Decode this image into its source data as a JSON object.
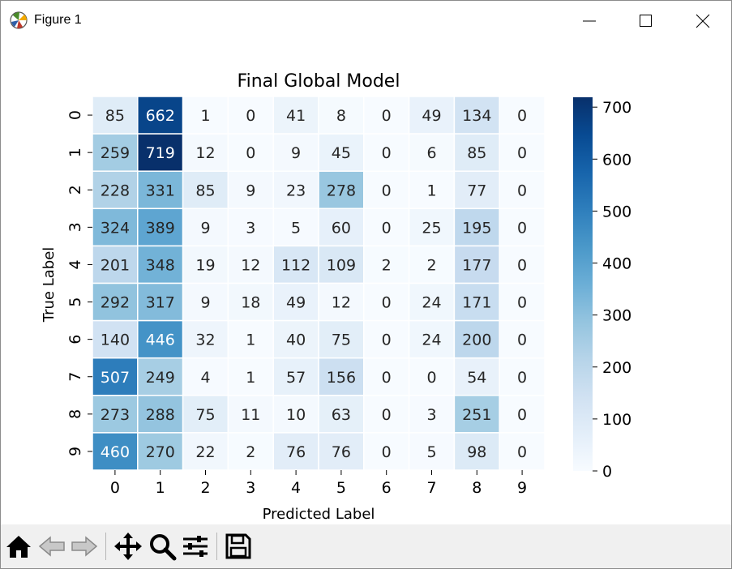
{
  "window": {
    "title": "Figure 1",
    "controls": [
      "minimize",
      "maximize",
      "close"
    ]
  },
  "toolbar": {
    "tools": [
      "home-icon",
      "back-icon",
      "forward-icon",
      "pan-icon",
      "zoom-icon",
      "configure-subplots-icon",
      "save-icon"
    ]
  },
  "chart_data": {
    "type": "heatmap",
    "title": "Final Global Model",
    "xlabel": "Predicted Label",
    "ylabel": "True Label",
    "x_categories": [
      "0",
      "1",
      "2",
      "3",
      "4",
      "5",
      "6",
      "7",
      "8",
      "9"
    ],
    "y_categories": [
      "0",
      "1",
      "2",
      "3",
      "4",
      "5",
      "6",
      "7",
      "8",
      "9"
    ],
    "values": [
      [
        85,
        662,
        1,
        0,
        41,
        8,
        0,
        49,
        134,
        0
      ],
      [
        259,
        719,
        12,
        0,
        9,
        45,
        0,
        6,
        85,
        0
      ],
      [
        228,
        331,
        85,
        9,
        23,
        278,
        0,
        1,
        77,
        0
      ],
      [
        324,
        389,
        9,
        3,
        5,
        60,
        0,
        25,
        195,
        0
      ],
      [
        201,
        348,
        19,
        12,
        112,
        109,
        2,
        2,
        177,
        0
      ],
      [
        292,
        317,
        9,
        18,
        49,
        12,
        0,
        24,
        171,
        0
      ],
      [
        140,
        446,
        32,
        1,
        40,
        75,
        0,
        24,
        200,
        0
      ],
      [
        507,
        249,
        4,
        1,
        57,
        156,
        0,
        0,
        54,
        0
      ],
      [
        273,
        288,
        75,
        11,
        10,
        63,
        0,
        3,
        251,
        0
      ],
      [
        460,
        270,
        22,
        2,
        76,
        76,
        0,
        5,
        98,
        0
      ]
    ],
    "colormap": "Blues",
    "colorbar": {
      "min": 0,
      "max": 719,
      "ticks": [
        0,
        100,
        200,
        300,
        400,
        500,
        600,
        700
      ]
    },
    "annotations": true,
    "grid": false
  }
}
